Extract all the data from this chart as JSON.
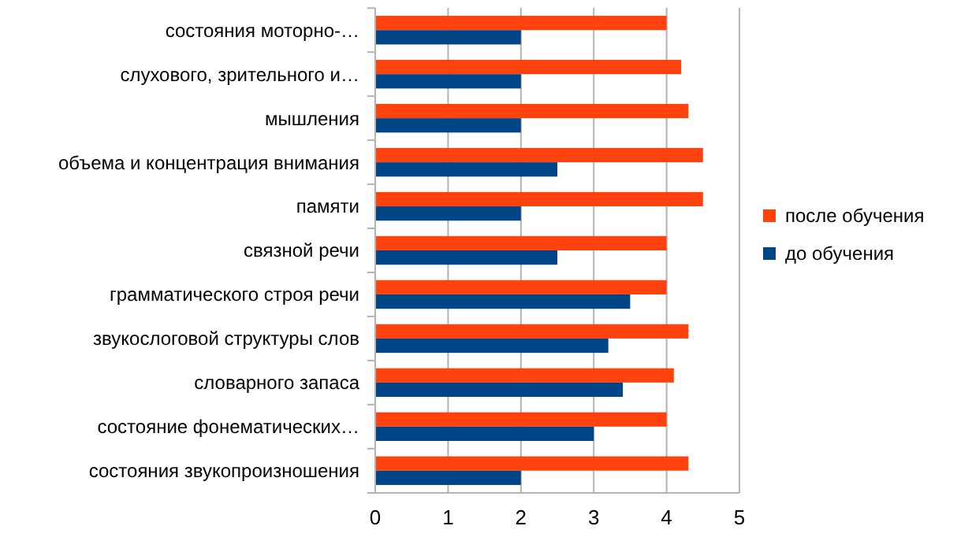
{
  "chart_data": {
    "type": "bar",
    "orientation": "horizontal",
    "categories": [
      "состояния моторно-…",
      "слухового, зрительного и…",
      "мышления",
      "объема и концентрация внимания",
      "памяти",
      "связной речи",
      "грамматического строя речи",
      "звукослоговой структуры слов",
      "словарного запаса",
      "состояние фонематических…",
      "состояния звукопроизношения"
    ],
    "series": [
      {
        "name": "после обучения",
        "color": "#ff420e",
        "values": [
          4.0,
          4.2,
          4.3,
          4.5,
          4.5,
          4.0,
          4.0,
          4.3,
          4.1,
          4.0,
          4.3
        ]
      },
      {
        "name": "до обучения",
        "color": "#004586",
        "values": [
          2.0,
          2.0,
          2.0,
          2.5,
          2.0,
          2.5,
          3.5,
          3.2,
          3.4,
          3.0,
          2.0
        ]
      }
    ],
    "xlim": [
      0,
      5
    ],
    "xticks": [
      0,
      1,
      2,
      3,
      4,
      5
    ],
    "grid": "x",
    "legend": "right"
  }
}
